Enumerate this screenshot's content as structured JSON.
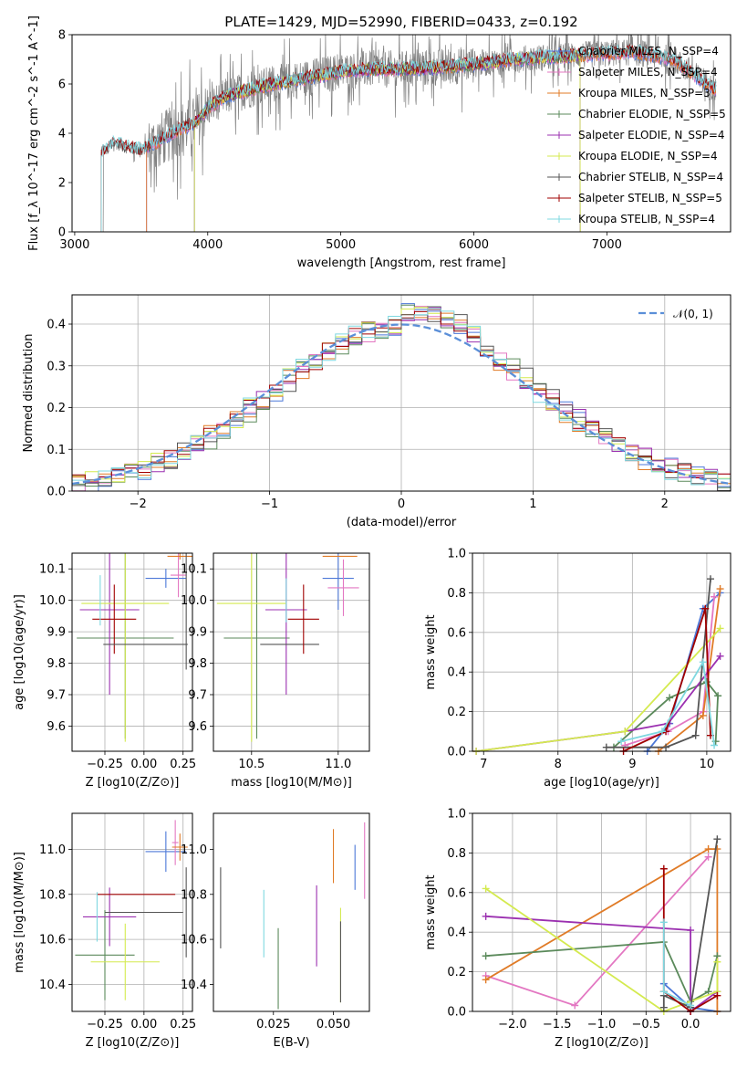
{
  "figure_title": "PLATE=1429, MJD=52990, FIBERID=0433, z=0.192",
  "colors": {
    "Chabrier MILES": "#4c78d8",
    "Salpeter MILES": "#e377c2",
    "Kroupa MILES": "#e07b27",
    "Chabrier ELODIE": "#5b8a5b",
    "Salpeter ELODIE": "#9b30b0",
    "Kroupa ELODIE": "#d4ea4f",
    "Chabrier STELIB": "#555555",
    "Salpeter STELIB": "#a00000",
    "Kroupa STELIB": "#7fd8e0"
  },
  "chart_data": [
    {
      "id": "spectrum",
      "type": "line",
      "title": "PLATE=1429, MJD=52990, FIBERID=0433, z=0.192",
      "xlabel": "wavelength [Angstrom, rest frame]",
      "ylabel": "Flux [f_λ 10^-17 erg cm^-2 s^-1 A^-1]",
      "xlim": [
        2980,
        7930
      ],
      "ylim": [
        0,
        8
      ],
      "xticks": [
        "3000",
        "4000",
        "5000",
        "6000",
        "7000"
      ],
      "yticks": [
        "0",
        "2",
        "4",
        "6",
        "8"
      ],
      "legend_position": "upper right",
      "legend": [
        "Chabrier MILES, N_SSP=4",
        "Salpeter MILES, N_SSP=4",
        "Kroupa MILES, N_SSP=3",
        "Chabrier ELODIE, N_SSP=5",
        "Salpeter ELODIE, N_SSP=4",
        "Kroupa ELODIE, N_SSP=4",
        "Chabrier STELIB, N_SSP=4",
        "Salpeter STELIB, N_SSP=5",
        "Kroupa STELIB, N_SSP=4"
      ],
      "data_color": "#808080",
      "continuum": {
        "x": [
          3200,
          3300,
          3400,
          3500,
          3600,
          3700,
          3800,
          3900,
          4000,
          4100,
          4200,
          4400,
          4600,
          4800,
          5000,
          5200,
          5500,
          5800,
          6000,
          6300,
          6600,
          6900,
          7200,
          7500,
          7800
        ],
        "y": [
          3.2,
          3.6,
          3.4,
          3.3,
          3.6,
          3.9,
          4.2,
          4.4,
          5.0,
          5.4,
          5.6,
          5.9,
          6.1,
          6.3,
          6.5,
          6.6,
          6.6,
          6.7,
          6.8,
          7.0,
          7.1,
          7.2,
          7.3,
          7.0,
          5.8
        ]
      }
    },
    {
      "id": "residuals",
      "type": "line",
      "xlabel": "(data-model)/error",
      "ylabel": "Normed distribution",
      "xlim": [
        -2.5,
        2.5
      ],
      "ylim": [
        0,
        0.47
      ],
      "xticks": [
        "−2",
        "−1",
        "0",
        "1",
        "2"
      ],
      "yticks": [
        "0.0",
        "0.1",
        "0.2",
        "0.3",
        "0.4"
      ],
      "legend": [
        "𝒩(0, 1)"
      ],
      "legend_position": "upper right",
      "grid": true
    },
    {
      "id": "age-vs-Z",
      "type": "scatter",
      "xlabel": "Z [log10(Z/Z⊙)]",
      "ylabel": "age  [log10(age/yr)]",
      "xlim": [
        -0.46,
        0.31
      ],
      "ylim": [
        9.52,
        10.15
      ],
      "xticks": [
        "−0.25",
        "0.00",
        "0.25"
      ],
      "yticks": [
        "9.6",
        "9.7",
        "9.8",
        "9.9",
        "10.0",
        "10.1"
      ],
      "grid": true,
      "points": [
        {
          "model": "Chabrier MILES",
          "x": 0.14,
          "xerr": 0.13,
          "y": 10.07,
          "yerr": 0.03
        },
        {
          "model": "Salpeter MILES",
          "x": 0.22,
          "xerr": 0.05,
          "y": 10.08,
          "yerr": 0.07
        },
        {
          "model": "Kroupa MILES",
          "x": 0.23,
          "xerr": 0.08,
          "y": 10.14,
          "yerr": 0.01
        },
        {
          "model": "Chabrier ELODIE",
          "x": -0.12,
          "xerr": 0.31,
          "y": 9.88,
          "yerr": 0.32
        },
        {
          "model": "Salpeter ELODIE",
          "x": -0.22,
          "xerr": 0.19,
          "y": 9.97,
          "yerr": 0.27
        },
        {
          "model": "Kroupa ELODIE",
          "x": -0.12,
          "xerr": 0.28,
          "y": 9.99,
          "yerr": 0.44
        },
        {
          "model": "Chabrier STELIB",
          "x": 0.27,
          "xerr": 0.0,
          "y": 10.05,
          "yerr": 0.27
        },
        {
          "model": "Salpeter STELIB",
          "x": -0.19,
          "xerr": 0.14,
          "y": 9.94,
          "yerr": 0.11
        },
        {
          "model": "Kroupa STELIB",
          "x": -0.28,
          "xerr": 0.0,
          "y": 10.0,
          "yerr": 0.08
        },
        {
          "model": "Chabrier STELIB",
          "x": 0.01,
          "xerr": 0.27,
          "y": 9.86,
          "yerr": 0.0
        }
      ]
    },
    {
      "id": "age-vs-mass",
      "type": "scatter",
      "xlabel": "mass [log10(M/M⊙)]",
      "xlim": [
        10.28,
        11.18
      ],
      "ylim": [
        9.52,
        10.15
      ],
      "xticks": [
        "10.5",
        "11.0"
      ],
      "yticks": [
        "9.6",
        "9.7",
        "9.8",
        "9.9",
        "10.0",
        "10.1"
      ],
      "grid": true,
      "points": [
        {
          "model": "Chabrier MILES",
          "x": 11.0,
          "xerr": 0.09,
          "y": 10.07,
          "yerr": 0.1
        },
        {
          "model": "Salpeter MILES",
          "x": 11.03,
          "xerr": 0.09,
          "y": 10.04,
          "yerr": 0.09
        },
        {
          "model": "Kroupa MILES",
          "x": 11.01,
          "xerr": 0.1,
          "y": 10.14,
          "yerr": 0.0
        },
        {
          "model": "Chabrier ELODIE",
          "x": 10.53,
          "xerr": 0.19,
          "y": 9.88,
          "yerr": 0.32
        },
        {
          "model": "Salpeter ELODIE",
          "x": 10.7,
          "xerr": 0.12,
          "y": 9.97,
          "yerr": 0.27
        },
        {
          "model": "Kroupa ELODIE",
          "x": 10.5,
          "xerr": 0.2,
          "y": 9.99,
          "yerr": 0.44
        },
        {
          "model": "Chabrier STELIB",
          "x": 10.72,
          "xerr": 0.17,
          "y": 9.86,
          "yerr": 0.0
        },
        {
          "model": "Salpeter STELIB",
          "x": 10.8,
          "xerr": 0.09,
          "y": 9.94,
          "yerr": 0.11
        },
        {
          "model": "Kroupa STELIB",
          "x": 10.7,
          "xerr": 0.0,
          "y": 10.0,
          "yerr": 0.07
        }
      ]
    },
    {
      "id": "mass-weight-vs-age",
      "type": "line",
      "xlabel": "age  [log10(age/yr)]",
      "ylabel": "mass weight",
      "xlim": [
        6.85,
        10.32
      ],
      "ylim": [
        0,
        1
      ],
      "xticks": [
        "7",
        "8",
        "9",
        "10"
      ],
      "yticks": [
        "0.0",
        "0.2",
        "0.4",
        "0.6",
        "0.8",
        "1.0"
      ],
      "grid": true,
      "series": [
        {
          "model": "Chabrier MILES",
          "x": [
            9.2,
            9.5,
            9.95,
            10.18
          ],
          "y": [
            0.0,
            0.14,
            0.72,
            0.8
          ]
        },
        {
          "model": "Salpeter MILES",
          "x": [
            8.9,
            9.48,
            9.95,
            10.1
          ],
          "y": [
            0.03,
            0.1,
            0.2,
            0.78
          ]
        },
        {
          "model": "Kroupa MILES",
          "x": [
            9.35,
            9.95,
            10.18
          ],
          "y": [
            0.0,
            0.18,
            0.82
          ]
        },
        {
          "model": "Chabrier ELODIE",
          "x": [
            8.75,
            9.5,
            10.0,
            10.15,
            10.12
          ],
          "y": [
            0.02,
            0.27,
            0.35,
            0.28,
            0.05
          ]
        },
        {
          "model": "Salpeter ELODIE",
          "x": [
            6.9,
            8.9,
            9.48,
            10.18
          ],
          "y": [
            0.0,
            0.1,
            0.14,
            0.48
          ]
        },
        {
          "model": "Kroupa ELODIE",
          "x": [
            6.9,
            8.9,
            10.18
          ],
          "y": [
            0.0,
            0.1,
            0.62
          ]
        },
        {
          "model": "Chabrier STELIB",
          "x": [
            8.65,
            9.45,
            9.85,
            10.05
          ],
          "y": [
            0.02,
            0.02,
            0.08,
            0.87
          ]
        },
        {
          "model": "Salpeter STELIB",
          "x": [
            8.88,
            9.45,
            9.98,
            10.05
          ],
          "y": [
            0.0,
            0.1,
            0.72,
            0.08
          ]
        },
        {
          "model": "Kroupa STELIB",
          "x": [
            8.85,
            9.4,
            9.95,
            10.1
          ],
          "y": [
            0.05,
            0.1,
            0.45,
            0.03
          ]
        }
      ]
    },
    {
      "id": "mass-vs-Z",
      "type": "scatter",
      "xlabel": "Z [log10(Z/Z⊙)]",
      "ylabel": "mass [log10(M/M⊙)]",
      "xlim": [
        -0.46,
        0.31
      ],
      "ylim": [
        10.28,
        11.16
      ],
      "xticks": [
        "−0.25",
        "0.00",
        "0.25"
      ],
      "yticks": [
        "10.4",
        "10.6",
        "10.8",
        "11.0"
      ],
      "grid": true,
      "points": [
        {
          "model": "Chabrier MILES",
          "x": 0.14,
          "xerr": 0.13,
          "y": 10.99,
          "yerr": 0.09
        },
        {
          "model": "Salpeter MILES",
          "x": 0.2,
          "xerr": 0.02,
          "y": 11.03,
          "yerr": 0.1
        },
        {
          "model": "Kroupa MILES",
          "x": 0.23,
          "xerr": 0.05,
          "y": 11.01,
          "yerr": 0.06
        },
        {
          "model": "Chabrier ELODIE",
          "x": -0.25,
          "xerr": 0.19,
          "y": 10.53,
          "yerr": 0.2
        },
        {
          "model": "Salpeter ELODIE",
          "x": -0.22,
          "xerr": 0.17,
          "y": 10.7,
          "yerr": 0.13
        },
        {
          "model": "Kroupa ELODIE",
          "x": -0.12,
          "xerr": 0.22,
          "y": 10.5,
          "yerr": 0.17
        },
        {
          "model": "Chabrier STELIB",
          "x": 0.27,
          "xerr": 0.0,
          "y": 10.72,
          "yerr": 0.2
        },
        {
          "model": "Salpeter STELIB",
          "x": -0.05,
          "xerr": 0.25,
          "y": 10.8,
          "yerr": 0.0
        },
        {
          "model": "Kroupa STELIB",
          "x": -0.3,
          "xerr": 0.0,
          "y": 10.7,
          "yerr": 0.11
        },
        {
          "model": "Chabrier STELIB",
          "x": 0.0,
          "xerr": 0.25,
          "y": 10.72,
          "yerr": 0.0
        }
      ]
    },
    {
      "id": "mass-vs-EBV",
      "type": "scatter",
      "xlabel": "E(B-V)",
      "xlim": [
        0.0,
        0.065
      ],
      "ylim": [
        10.28,
        11.16
      ],
      "xticks": [
        "0.025",
        "0.050"
      ],
      "yticks": [
        "10.4",
        "10.6",
        "10.8",
        "11.0"
      ],
      "grid": false,
      "points": [
        {
          "model": "Chabrier STELIB",
          "x": 0.003,
          "y": 10.74,
          "yerr": 0.18
        },
        {
          "model": "Kroupa STELIB",
          "x": 0.021,
          "y": 10.67,
          "yerr": 0.15
        },
        {
          "model": "Chabrier ELODIE",
          "x": 0.027,
          "y": 10.47,
          "yerr": 0.18
        },
        {
          "model": "Salpeter ELODIE",
          "x": 0.043,
          "y": 10.66,
          "yerr": 0.18
        },
        {
          "model": "Kroupa MILES",
          "x": 0.05,
          "y": 10.97,
          "yerr": 0.12
        },
        {
          "model": "Kroupa ELODIE",
          "x": 0.053,
          "y": 10.53,
          "yerr": 0.21
        },
        {
          "model": "Chabrier STELIB",
          "x": 0.053,
          "y": 10.5,
          "yerr": 0.18
        },
        {
          "model": "Chabrier MILES",
          "x": 0.059,
          "y": 10.92,
          "yerr": 0.1
        },
        {
          "model": "Salpeter MILES",
          "x": 0.063,
          "y": 10.95,
          "yerr": 0.17
        }
      ]
    },
    {
      "id": "mass-weight-vs-Z",
      "type": "line",
      "xlabel": "Z [log10(Z/Z⊙)]",
      "ylabel": "mass weight",
      "xlim": [
        -2.45,
        0.45
      ],
      "ylim": [
        0,
        1
      ],
      "xticks": [
        "−2.0",
        "−1.5",
        "−1.0",
        "−0.5",
        "0.0"
      ],
      "yticks": [
        "0.0",
        "0.2",
        "0.4",
        "0.6",
        "0.8",
        "1.0"
      ],
      "grid": true,
      "series": [
        {
          "model": "Chabrier MILES",
          "x": [
            -0.3,
            0.0,
            0.3
          ],
          "y": [
            0.14,
            0.02,
            0.0
          ]
        },
        {
          "model": "Salpeter MILES",
          "x": [
            -2.3,
            -1.3,
            0.2
          ],
          "y": [
            0.18,
            0.03,
            0.78
          ]
        },
        {
          "model": "Kroupa MILES",
          "x": [
            -2.3,
            0.2,
            0.3,
            0.3
          ],
          "y": [
            0.16,
            0.82,
            0.82,
            0.0
          ]
        },
        {
          "model": "Chabrier ELODIE",
          "x": [
            -2.3,
            -0.3,
            0.0,
            0.2,
            0.3
          ],
          "y": [
            0.28,
            0.35,
            0.05,
            0.1,
            0.28
          ]
        },
        {
          "model": "Salpeter ELODIE",
          "x": [
            -2.3,
            0.0,
            0.0,
            0.3
          ],
          "y": [
            0.48,
            0.41,
            0.0,
            0.1
          ]
        },
        {
          "model": "Kroupa ELODIE",
          "x": [
            -2.3,
            -0.3,
            0.3,
            0.3
          ],
          "y": [
            0.62,
            0.0,
            0.1,
            0.25
          ]
        },
        {
          "model": "Chabrier STELIB",
          "x": [
            -0.3,
            -0.3,
            0.0,
            0.3
          ],
          "y": [
            0.02,
            0.08,
            0.02,
            0.87
          ]
        },
        {
          "model": "Salpeter STELIB",
          "x": [
            -0.3,
            -0.3,
            0.0,
            0.3
          ],
          "y": [
            0.72,
            0.1,
            0.0,
            0.08
          ]
        },
        {
          "model": "Kroupa STELIB",
          "x": [
            -0.3,
            -0.3,
            0.0
          ],
          "y": [
            0.45,
            0.1,
            0.03
          ]
        }
      ]
    }
  ]
}
